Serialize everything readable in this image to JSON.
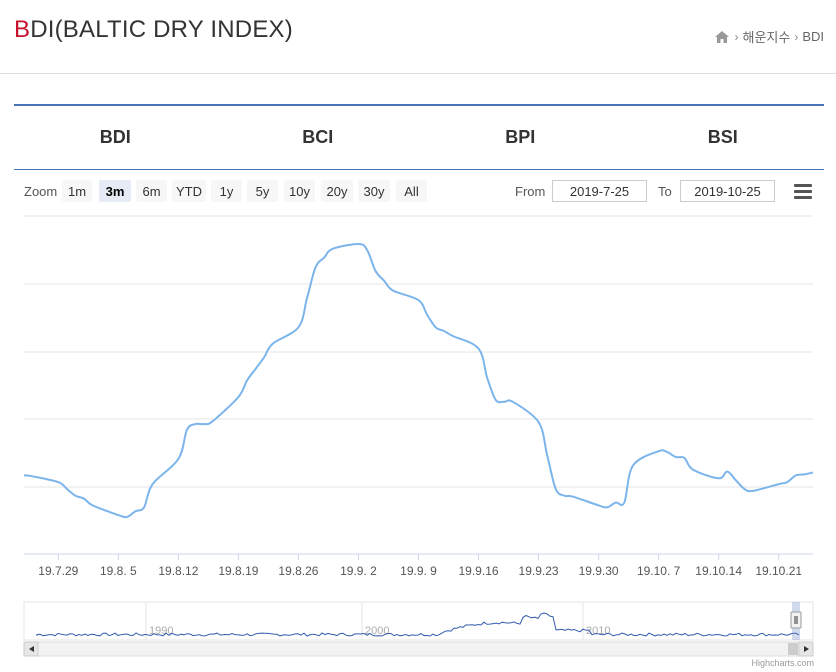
{
  "header": {
    "title_accent": "B",
    "title_rest": "DI(BALTIC DRY INDEX)",
    "breadcrumb": {
      "section": "해운지수",
      "current": "BDI"
    }
  },
  "tabs": [
    {
      "label": "BDI"
    },
    {
      "label": "BCI"
    },
    {
      "label": "BPI"
    },
    {
      "label": "BSI"
    }
  ],
  "toolbar": {
    "zoom_label": "Zoom",
    "zoom_buttons": [
      "1m",
      "3m",
      "6m",
      "YTD",
      "1y",
      "5y",
      "10y",
      "20y",
      "30y",
      "All"
    ],
    "active_zoom": "3m",
    "from_label": "From",
    "from_value": "2019-7-25",
    "to_label": "To",
    "to_value": "2019-10-25"
  },
  "chart_data": {
    "type": "line",
    "title": "",
    "xlabel": "",
    "ylabel": "",
    "grid": true,
    "line_color": "#7cb5ec",
    "x_tick_labels": [
      "19.7.29",
      "19.8. 5",
      "19.8.12",
      "19.8.19",
      "19.8.26",
      "19.9. 2",
      "19.9. 9",
      "19.9.16",
      "19.9.23",
      "19.9.30",
      "19.10. 7",
      "19.10.14",
      "19.10.21"
    ],
    "series": [
      {
        "x": [
          "2019-07-25",
          "2019-07-26",
          "2019-07-29",
          "2019-07-30",
          "2019-07-31",
          "2019-08-01",
          "2019-08-02",
          "2019-08-05",
          "2019-08-06",
          "2019-08-07",
          "2019-08-08",
          "2019-08-09",
          "2019-08-12",
          "2019-08-13",
          "2019-08-14",
          "2019-08-15",
          "2019-08-16",
          "2019-08-19",
          "2019-08-20",
          "2019-08-21",
          "2019-08-22",
          "2019-08-23",
          "2019-08-26",
          "2019-08-27",
          "2019-08-28",
          "2019-08-29",
          "2019-08-30",
          "2019-09-02",
          "2019-09-03",
          "2019-09-04",
          "2019-09-05",
          "2019-09-06",
          "2019-09-09",
          "2019-09-10",
          "2019-09-11",
          "2019-09-12",
          "2019-09-13",
          "2019-09-16",
          "2019-09-17",
          "2019-09-18",
          "2019-09-19",
          "2019-09-20",
          "2019-09-23",
          "2019-09-24",
          "2019-09-25",
          "2019-09-26",
          "2019-09-27",
          "2019-09-30",
          "2019-10-01",
          "2019-10-02",
          "2019-10-03",
          "2019-10-04",
          "2019-10-07",
          "2019-10-08",
          "2019-10-09",
          "2019-10-10",
          "2019-10-11",
          "2019-10-14",
          "2019-10-15",
          "2019-10-16",
          "2019-10-17",
          "2019-10-18",
          "2019-10-21",
          "2019-10-22",
          "2019-10-23",
          "2019-10-24",
          "2019-10-25"
        ],
        "values": [
          0.19,
          0.18,
          0.12,
          0.05,
          -0.02,
          -0.05,
          -0.12,
          -0.22,
          -0.24,
          -0.18,
          -0.14,
          0.1,
          0.36,
          0.66,
          0.72,
          0.72,
          0.75,
          1.0,
          1.17,
          1.29,
          1.41,
          1.55,
          1.72,
          2.02,
          2.34,
          2.44,
          2.53,
          2.58,
          2.52,
          2.3,
          2.2,
          2.1,
          2.0,
          1.85,
          1.72,
          1.68,
          1.63,
          1.5,
          1.2,
          0.97,
          0.95,
          0.95,
          0.74,
          0.4,
          0.05,
          -0.02,
          -0.03,
          -0.12,
          -0.14,
          -0.09,
          -0.09,
          0.29,
          0.44,
          0.43,
          0.38,
          0.37,
          0.25,
          0.16,
          0.23,
          0.14,
          0.05,
          0.03,
          0.1,
          0.12,
          0.19,
          0.2,
          0.22
        ]
      }
    ],
    "navigator": {
      "tick_labels": [
        "1990",
        "2000",
        "2010"
      ]
    }
  },
  "credit": "Highcharts.com"
}
